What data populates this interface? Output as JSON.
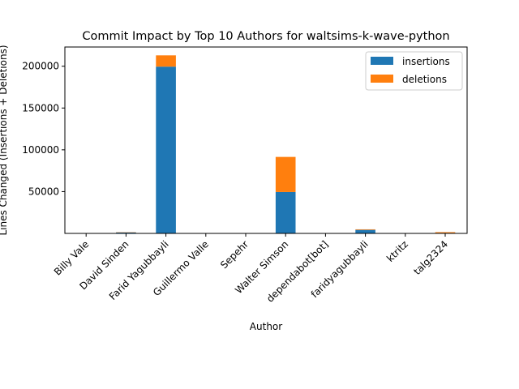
{
  "chart_data": {
    "type": "bar",
    "stacked": true,
    "title": "Commit Impact by Top 10 Authors for waltsims-k-wave-python",
    "xlabel": "Author",
    "ylabel": "Lines Changed (Insertions + Deletions)",
    "ylim": [
      0,
      223000
    ],
    "yticks": [
      50000,
      100000,
      150000,
      200000
    ],
    "categories": [
      "Billy Vale",
      "David Sinden",
      "Farid Yagubbayli",
      "Guillermo Valle",
      "Sepehr",
      "Walter Simson",
      "dependabot[bot]",
      "faridyagubbayli",
      "ktritz",
      "talg2324"
    ],
    "series": [
      {
        "name": "insertions",
        "color": "#1f77b4",
        "values": [
          150,
          1200,
          199500,
          80,
          60,
          49500,
          30,
          4200,
          40,
          600
        ]
      },
      {
        "name": "deletions",
        "color": "#ff7f0e",
        "values": [
          50,
          300,
          13500,
          20,
          20,
          42000,
          10,
          700,
          10,
          900
        ]
      }
    ],
    "legend_position": "top-right",
    "grid": false
  }
}
